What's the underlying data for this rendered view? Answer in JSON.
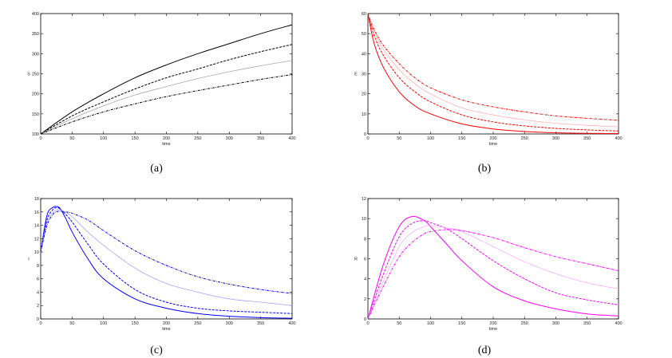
{
  "chart_data": [
    {
      "type": "line",
      "caption": "(a)",
      "xlabel": "time",
      "ylabel": "S",
      "xlim": [
        0,
        400
      ],
      "ylim": [
        100,
        400
      ],
      "xticks": [
        0,
        50,
        100,
        150,
        200,
        250,
        300,
        350,
        400
      ],
      "yticks": [
        100,
        150,
        200,
        250,
        300,
        350,
        400
      ],
      "color": "#000000",
      "light_color": "#aaaaaa",
      "x": [
        0,
        50,
        100,
        150,
        200,
        250,
        300,
        350,
        400
      ],
      "series": [
        {
          "style": "solid",
          "values": [
            100,
            155,
            200,
            240,
            272,
            300,
            325,
            350,
            372
          ]
        },
        {
          "style": "dashed",
          "values": [
            100,
            145,
            180,
            212,
            240,
            262,
            285,
            305,
            323
          ]
        },
        {
          "style": "light",
          "values": [
            100,
            138,
            170,
            197,
            218,
            238,
            255,
            270,
            283
          ]
        },
        {
          "style": "dashdot",
          "values": [
            100,
            130,
            155,
            175,
            193,
            208,
            222,
            236,
            248
          ]
        }
      ]
    },
    {
      "type": "line",
      "caption": "(b)",
      "xlabel": "time",
      "ylabel": "E",
      "xlim": [
        0,
        400
      ],
      "ylim": [
        0,
        60
      ],
      "xticks": [
        0,
        50,
        100,
        150,
        200,
        250,
        300,
        350,
        400
      ],
      "yticks": [
        0,
        10,
        20,
        30,
        40,
        50,
        60
      ],
      "color": "#ff0000",
      "light_color": "#ffb0b0",
      "x": [
        0,
        10,
        25,
        50,
        75,
        100,
        150,
        200,
        250,
        300,
        350,
        400
      ],
      "series": [
        {
          "style": "solid",
          "values": [
            60,
            45,
            33,
            21,
            14,
            10,
            5,
            2.5,
            1.2,
            0.6,
            0.3,
            0.2
          ]
        },
        {
          "style": "dashed",
          "values": [
            60,
            49,
            39,
            28,
            21,
            16,
            9.5,
            6,
            4,
            2.8,
            2,
            1.5
          ]
        },
        {
          "style": "light",
          "values": [
            60,
            51,
            42,
            32,
            25,
            20,
            13,
            9.5,
            7,
            5.3,
            4.3,
            3.6
          ]
        },
        {
          "style": "dashdot",
          "values": [
            60,
            52,
            44,
            35,
            28,
            23,
            17,
            13.5,
            11,
            9,
            7.8,
            6.8
          ]
        }
      ]
    },
    {
      "type": "line",
      "caption": "(c)",
      "xlabel": "time",
      "ylabel": "I",
      "xlim": [
        0,
        400
      ],
      "ylim": [
        0,
        18
      ],
      "xticks": [
        0,
        50,
        100,
        150,
        200,
        250,
        300,
        350,
        400
      ],
      "yticks": [
        0,
        2,
        4,
        6,
        8,
        10,
        12,
        14,
        16,
        18
      ],
      "color": "#0000ff",
      "light_color": "#a8a8ff",
      "x": [
        0,
        10,
        20,
        25,
        30,
        40,
        50,
        75,
        100,
        150,
        200,
        250,
        300,
        350,
        400
      ],
      "series": [
        {
          "style": "solid",
          "values": [
            10,
            15.5,
            16.7,
            16.8,
            16.6,
            15,
            13,
            9,
            6,
            3,
            1.6,
            0.8,
            0.4,
            0.2,
            0.1
          ]
        },
        {
          "style": "dashed",
          "values": [
            10,
            14.8,
            16.4,
            16.6,
            16.5,
            15.6,
            14.5,
            11.2,
            8.2,
            4.4,
            2.5,
            1.6,
            1.2,
            1,
            0.8
          ]
        },
        {
          "style": "light",
          "values": [
            10,
            14.4,
            16,
            16.2,
            16.3,
            15.9,
            15.3,
            13,
            11,
            7.6,
            5.3,
            4,
            3,
            2.5,
            2
          ]
        },
        {
          "style": "dashdot",
          "values": [
            10,
            14,
            15.7,
            16,
            16.1,
            16,
            15.8,
            14.8,
            13.2,
            10.2,
            8,
            6.3,
            5.2,
            4.4,
            3.8
          ]
        }
      ]
    },
    {
      "type": "line",
      "caption": "(d)",
      "xlabel": "time",
      "ylabel": "R",
      "xlim": [
        0,
        400
      ],
      "ylim": [
        0,
        12
      ],
      "xticks": [
        0,
        50,
        100,
        150,
        200,
        250,
        300,
        350,
        400
      ],
      "yticks": [
        0,
        2,
        4,
        6,
        8,
        10,
        12
      ],
      "color": "#ff00ff",
      "light_color": "#ffb0ff",
      "x": [
        0,
        25,
        50,
        70,
        90,
        100,
        125,
        150,
        200,
        250,
        300,
        350,
        400
      ],
      "series": [
        {
          "style": "solid",
          "values": [
            0,
            5.5,
            9.2,
            10.2,
            9.8,
            9.2,
            7.5,
            5.8,
            3.2,
            1.8,
            1,
            0.5,
            0.3
          ]
        },
        {
          "style": "dashed",
          "values": [
            0,
            4.5,
            8.2,
            9.5,
            9.8,
            9.6,
            9,
            8,
            5.8,
            4,
            2.6,
            1.9,
            1.4
          ]
        },
        {
          "style": "light",
          "values": [
            0,
            3.8,
            7.2,
            8.6,
            9.2,
            9.3,
            9.1,
            8.7,
            7.2,
            5.7,
            4.5,
            3.6,
            3
          ]
        },
        {
          "style": "dashdot",
          "values": [
            0,
            3.3,
            6.2,
            7.6,
            8.5,
            8.7,
            8.9,
            8.8,
            8.1,
            7.1,
            6.2,
            5.5,
            4.8
          ]
        }
      ]
    }
  ]
}
